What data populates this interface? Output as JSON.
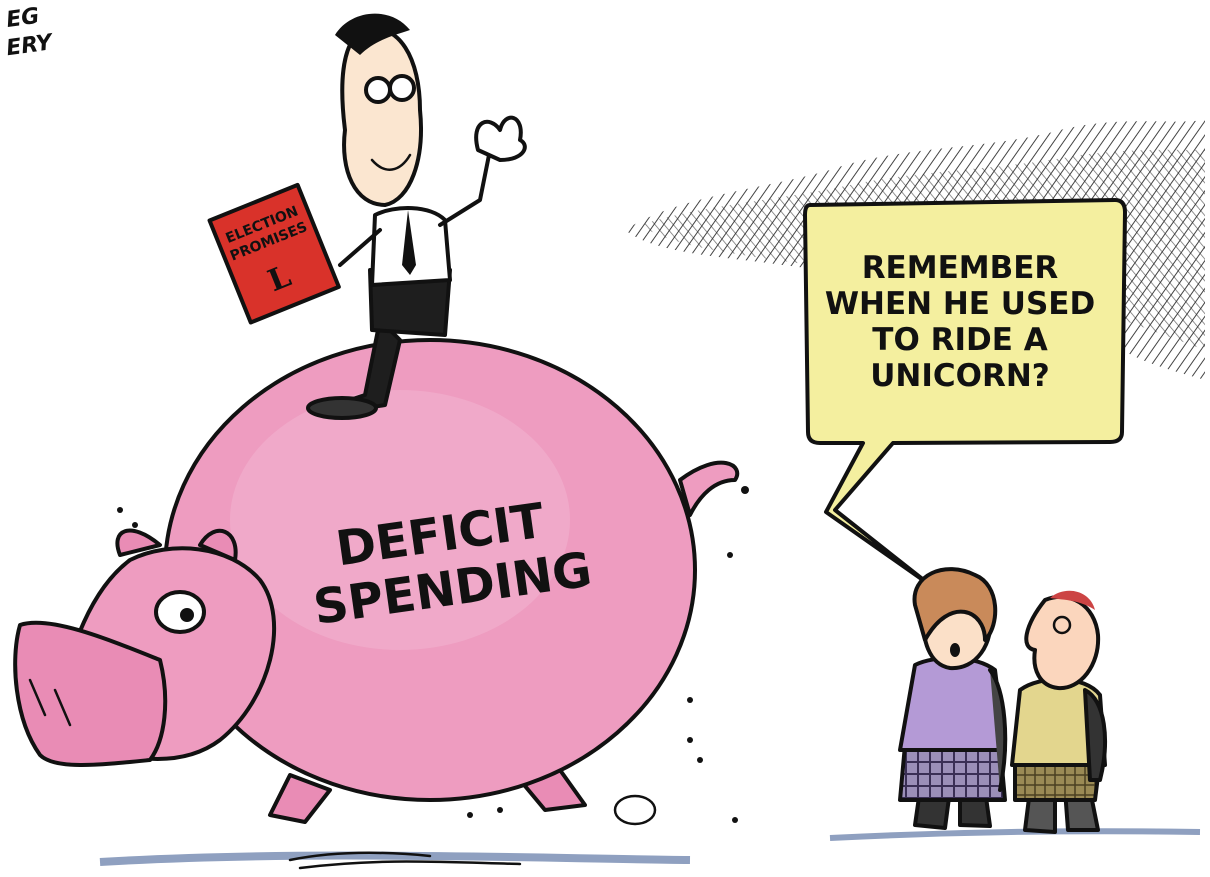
{
  "signature": [
    "EG",
    "ERY"
  ],
  "book": {
    "title": [
      "ELECTION",
      "PROMISES"
    ],
    "emblem": "L"
  },
  "pig_label": [
    "DEFICIT",
    "SPENDING"
  ],
  "speech_bubble": [
    "REMEMBER",
    "WHEN HE USED",
    "TO RIDE A",
    "UNICORN?"
  ]
}
